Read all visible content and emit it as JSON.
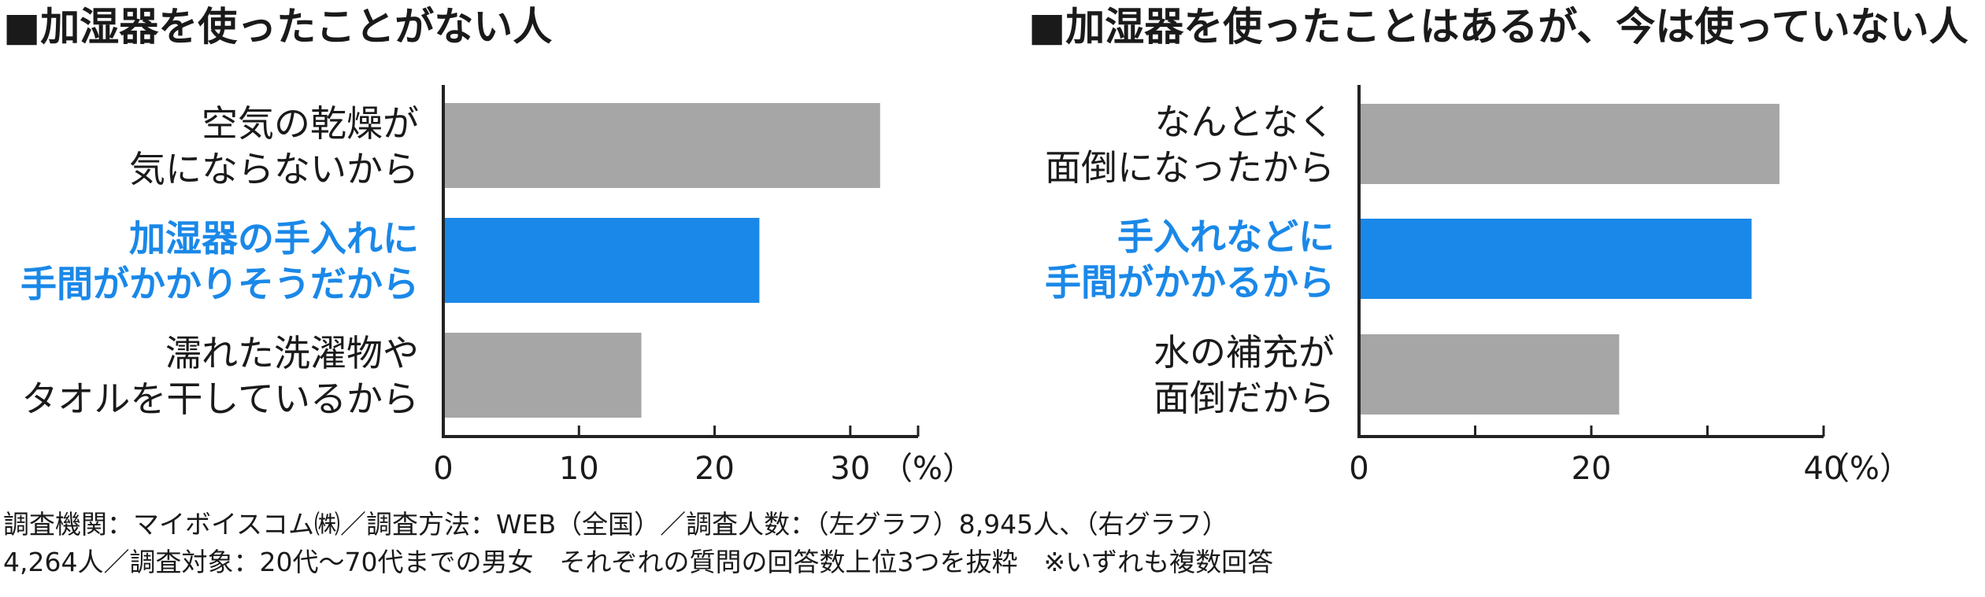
{
  "chart_data": [
    {
      "type": "bar",
      "orientation": "horizontal",
      "title": "■加湿器を使ったことがない人",
      "categories": [
        [
          "空気の乾燥が",
          "気にならないから"
        ],
        [
          "加湿器の手入れに",
          "手間がかかりそうだから"
        ],
        [
          "濡れた洗濯物や",
          "タオルを干しているから"
        ]
      ],
      "values": [
        32.2,
        23.3,
        14.6
      ],
      "highlight_index": 1,
      "xlim": [
        0,
        35
      ],
      "xticks": [
        0,
        10,
        20,
        30
      ],
      "x_unit": "（%）",
      "grid": false,
      "legend": "none"
    },
    {
      "type": "bar",
      "orientation": "horizontal",
      "title": "■加湿器を使ったことはあるが、今は使っていない人",
      "categories": [
        [
          "なんとなく",
          "面倒になったから"
        ],
        [
          "手入れなどに",
          "手間がかかるから"
        ],
        [
          "水の補充が",
          "面倒だから"
        ]
      ],
      "values": [
        36.2,
        33.8,
        22.4
      ],
      "highlight_index": 1,
      "xlim": [
        0,
        40
      ],
      "xticks": [
        0,
        20,
        40
      ],
      "minor_xticks": [
        10,
        30
      ],
      "x_unit": "（%）",
      "grid": false,
      "legend": "none"
    }
  ],
  "colors": {
    "bar": "#a6a6a6",
    "highlight": "#1a88e8",
    "axis": "#222222",
    "text": "#1a1a1a"
  },
  "footnote": {
    "line1": "調査機関：マイボイスコム㈱／調査方法：WEB（全国）／調査人数：（左グラフ）8,945人、（右グラフ）",
    "line2": "4,264人／調査対象：20代〜70代までの男女　それぞれの質問の回答数上位3つを抜粋　※いずれも複数回答"
  }
}
